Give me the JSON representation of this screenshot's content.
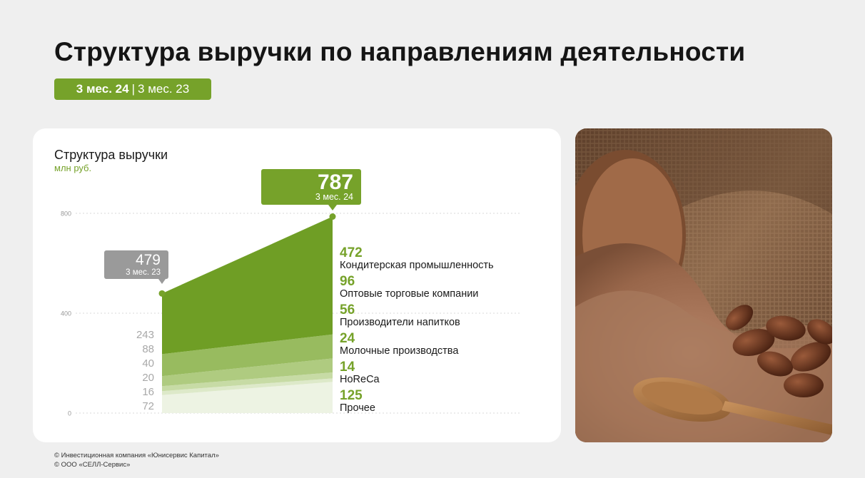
{
  "header": {
    "title": "Структура выручки по направлениям деятельности",
    "period_active": "3 мес. 24",
    "period_separator": "|",
    "period_inactive": "3 мес. 23"
  },
  "chart_card": {
    "title": "Структура выручки",
    "unit": "млн руб."
  },
  "chart_data": {
    "type": "area",
    "title": "Структура выручки",
    "ylabel": "млн руб.",
    "ylim": [
      0,
      800
    ],
    "yticks": [
      "0",
      "400",
      "800"
    ],
    "grid": true,
    "categories": [
      "3 мес. 23",
      "3 мес. 24"
    ],
    "totals": [
      479,
      787
    ],
    "total_callouts": [
      {
        "value": "479",
        "label": "3 мес. 23"
      },
      {
        "value": "787",
        "label": "3 мес. 24"
      }
    ],
    "series": [
      {
        "name": "Прочее",
        "values": [
          72,
          125
        ],
        "color": "#edf3e3"
      },
      {
        "name": "HoReCa",
        "values": [
          16,
          14
        ],
        "color": "#dde9c9"
      },
      {
        "name": "Молочные производства",
        "values": [
          20,
          24
        ],
        "color": "#c7dba5"
      },
      {
        "name": "Производители напитков",
        "values": [
          40,
          56
        ],
        "color": "#afcb80"
      },
      {
        "name": "Оптовые торговые компании",
        "values": [
          88,
          96
        ],
        "color": "#98bb5f"
      },
      {
        "name": "Кондитерская промышленность",
        "values": [
          243,
          472
        ],
        "color": "#6f9e25"
      }
    ],
    "left_labels": [
      "243",
      "88",
      "40",
      "20",
      "16",
      "72"
    ],
    "right_labels": [
      {
        "value": "472",
        "name": "Кондитерская промышленность"
      },
      {
        "value": "96",
        "name": "Оптовые торговые компании"
      },
      {
        "value": "56",
        "name": "Производители напитков"
      },
      {
        "value": "24",
        "name": "Молочные производства"
      },
      {
        "value": "14",
        "name": "HoReCa"
      },
      {
        "value": "125",
        "name": "Прочее"
      }
    ],
    "colors": {
      "accent": "#76a22a",
      "prev_callout": "#9a9a9a",
      "left_label": "#a8a8a8",
      "grid": "#d9d9d9"
    }
  },
  "photo": {
    "icon": "cocoa-beans-photo"
  },
  "footer": {
    "line1": "© Инвестиционная компания «Юнисервис Капитал»",
    "line2": "© ООО «СЕЛЛ-Сервис»"
  }
}
